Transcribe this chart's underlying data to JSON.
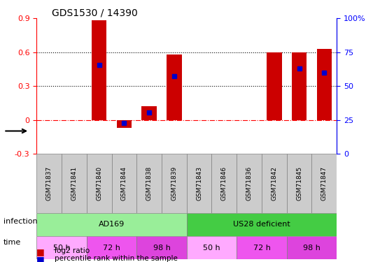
{
  "title": "GDS1530 / 14390",
  "samples": [
    "GSM71837",
    "GSM71841",
    "GSM71840",
    "GSM71844",
    "GSM71838",
    "GSM71839",
    "GSM71843",
    "GSM71846",
    "GSM71836",
    "GSM71842",
    "GSM71845",
    "GSM71847"
  ],
  "log2_ratio": [
    0.0,
    0.0,
    0.88,
    -0.07,
    0.12,
    0.58,
    0.0,
    0.0,
    0.0,
    0.6,
    0.6,
    0.63
  ],
  "percentile_rank": [
    null,
    null,
    0.655,
    0.225,
    0.305,
    0.575,
    null,
    null,
    null,
    null,
    0.63,
    0.6
  ],
  "ylim_left": [
    -0.3,
    0.9
  ],
  "ylim_right": [
    0,
    100
  ],
  "yticks_left": [
    -0.3,
    0.0,
    0.3,
    0.6,
    0.9
  ],
  "ytick_labels_left": [
    "-0.3",
    "0",
    "0.3",
    "0.6",
    "0.9"
  ],
  "yticks_right": [
    0,
    25,
    50,
    75,
    100
  ],
  "ytick_labels_right": [
    "0",
    "25",
    "50",
    "75",
    "100%"
  ],
  "hlines_dotted": [
    0.3,
    0.6
  ],
  "hline_dashdot": 0.0,
  "bar_color": "#cc0000",
  "dot_color": "#0000cc",
  "infection_groups": [
    {
      "label": "AD169",
      "start": 0,
      "end": 5,
      "color": "#99ee99"
    },
    {
      "label": "US28 deficient",
      "start": 6,
      "end": 11,
      "color": "#44cc44"
    }
  ],
  "time_groups": [
    {
      "label": "50 h",
      "start": 0,
      "end": 1,
      "color": "#ffaaff"
    },
    {
      "label": "72 h",
      "start": 2,
      "end": 3,
      "color": "#ee55ee"
    },
    {
      "label": "98 h",
      "start": 4,
      "end": 5,
      "color": "#dd44dd"
    },
    {
      "label": "50 h",
      "start": 6,
      "end": 7,
      "color": "#ffaaff"
    },
    {
      "label": "72 h",
      "start": 8,
      "end": 9,
      "color": "#ee55ee"
    },
    {
      "label": "98 h",
      "start": 10,
      "end": 11,
      "color": "#dd44dd"
    }
  ],
  "infection_label": "infection",
  "time_label": "time",
  "legend_items": [
    {
      "label": "log2 ratio",
      "color": "#cc0000"
    },
    {
      "label": "percentile rank within the sample",
      "color": "#0000cc"
    }
  ],
  "bar_width": 0.6
}
